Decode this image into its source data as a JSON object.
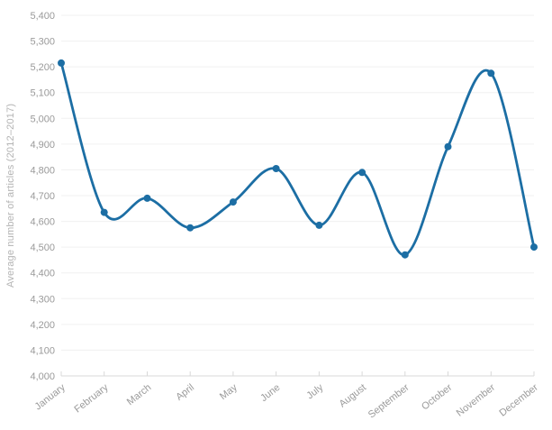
{
  "page": {
    "background": "#ffffff"
  },
  "chart_data": {
    "type": "line",
    "title": "",
    "xlabel": "",
    "ylabel": "Average number of articles (2012–2017)",
    "categories": [
      "January",
      "February",
      "March",
      "April",
      "May",
      "June",
      "July",
      "August",
      "September",
      "October",
      "November",
      "December"
    ],
    "series": [
      {
        "name": "Average number of articles",
        "color": "#1c6ea4",
        "values": [
          5215,
          4635,
          4690,
          4575,
          4675,
          4805,
          4585,
          4790,
          4470,
          4890,
          5175,
          4500
        ]
      }
    ],
    "ylim": [
      4000,
      5400
    ],
    "ytick_step": 100,
    "ytick_labels": [
      "4,000",
      "4,100",
      "4,200",
      "4,300",
      "4,400",
      "4,500",
      "4,600",
      "4,700",
      "4,800",
      "4,900",
      "5,000",
      "5,100",
      "5,200",
      "5,300",
      "5,400"
    ],
    "grid": true,
    "legend_position": "none",
    "smooth": true,
    "marker": "circle",
    "x_label_rotation": -38
  },
  "style": {
    "grid_color": "#f0f0f0",
    "axis_line_color": "#d8d8d8",
    "tick_mark_color": "#d8d8d8",
    "tick_label_color": "#9a9a9a",
    "axis_title_color": "#b3b3b3"
  }
}
